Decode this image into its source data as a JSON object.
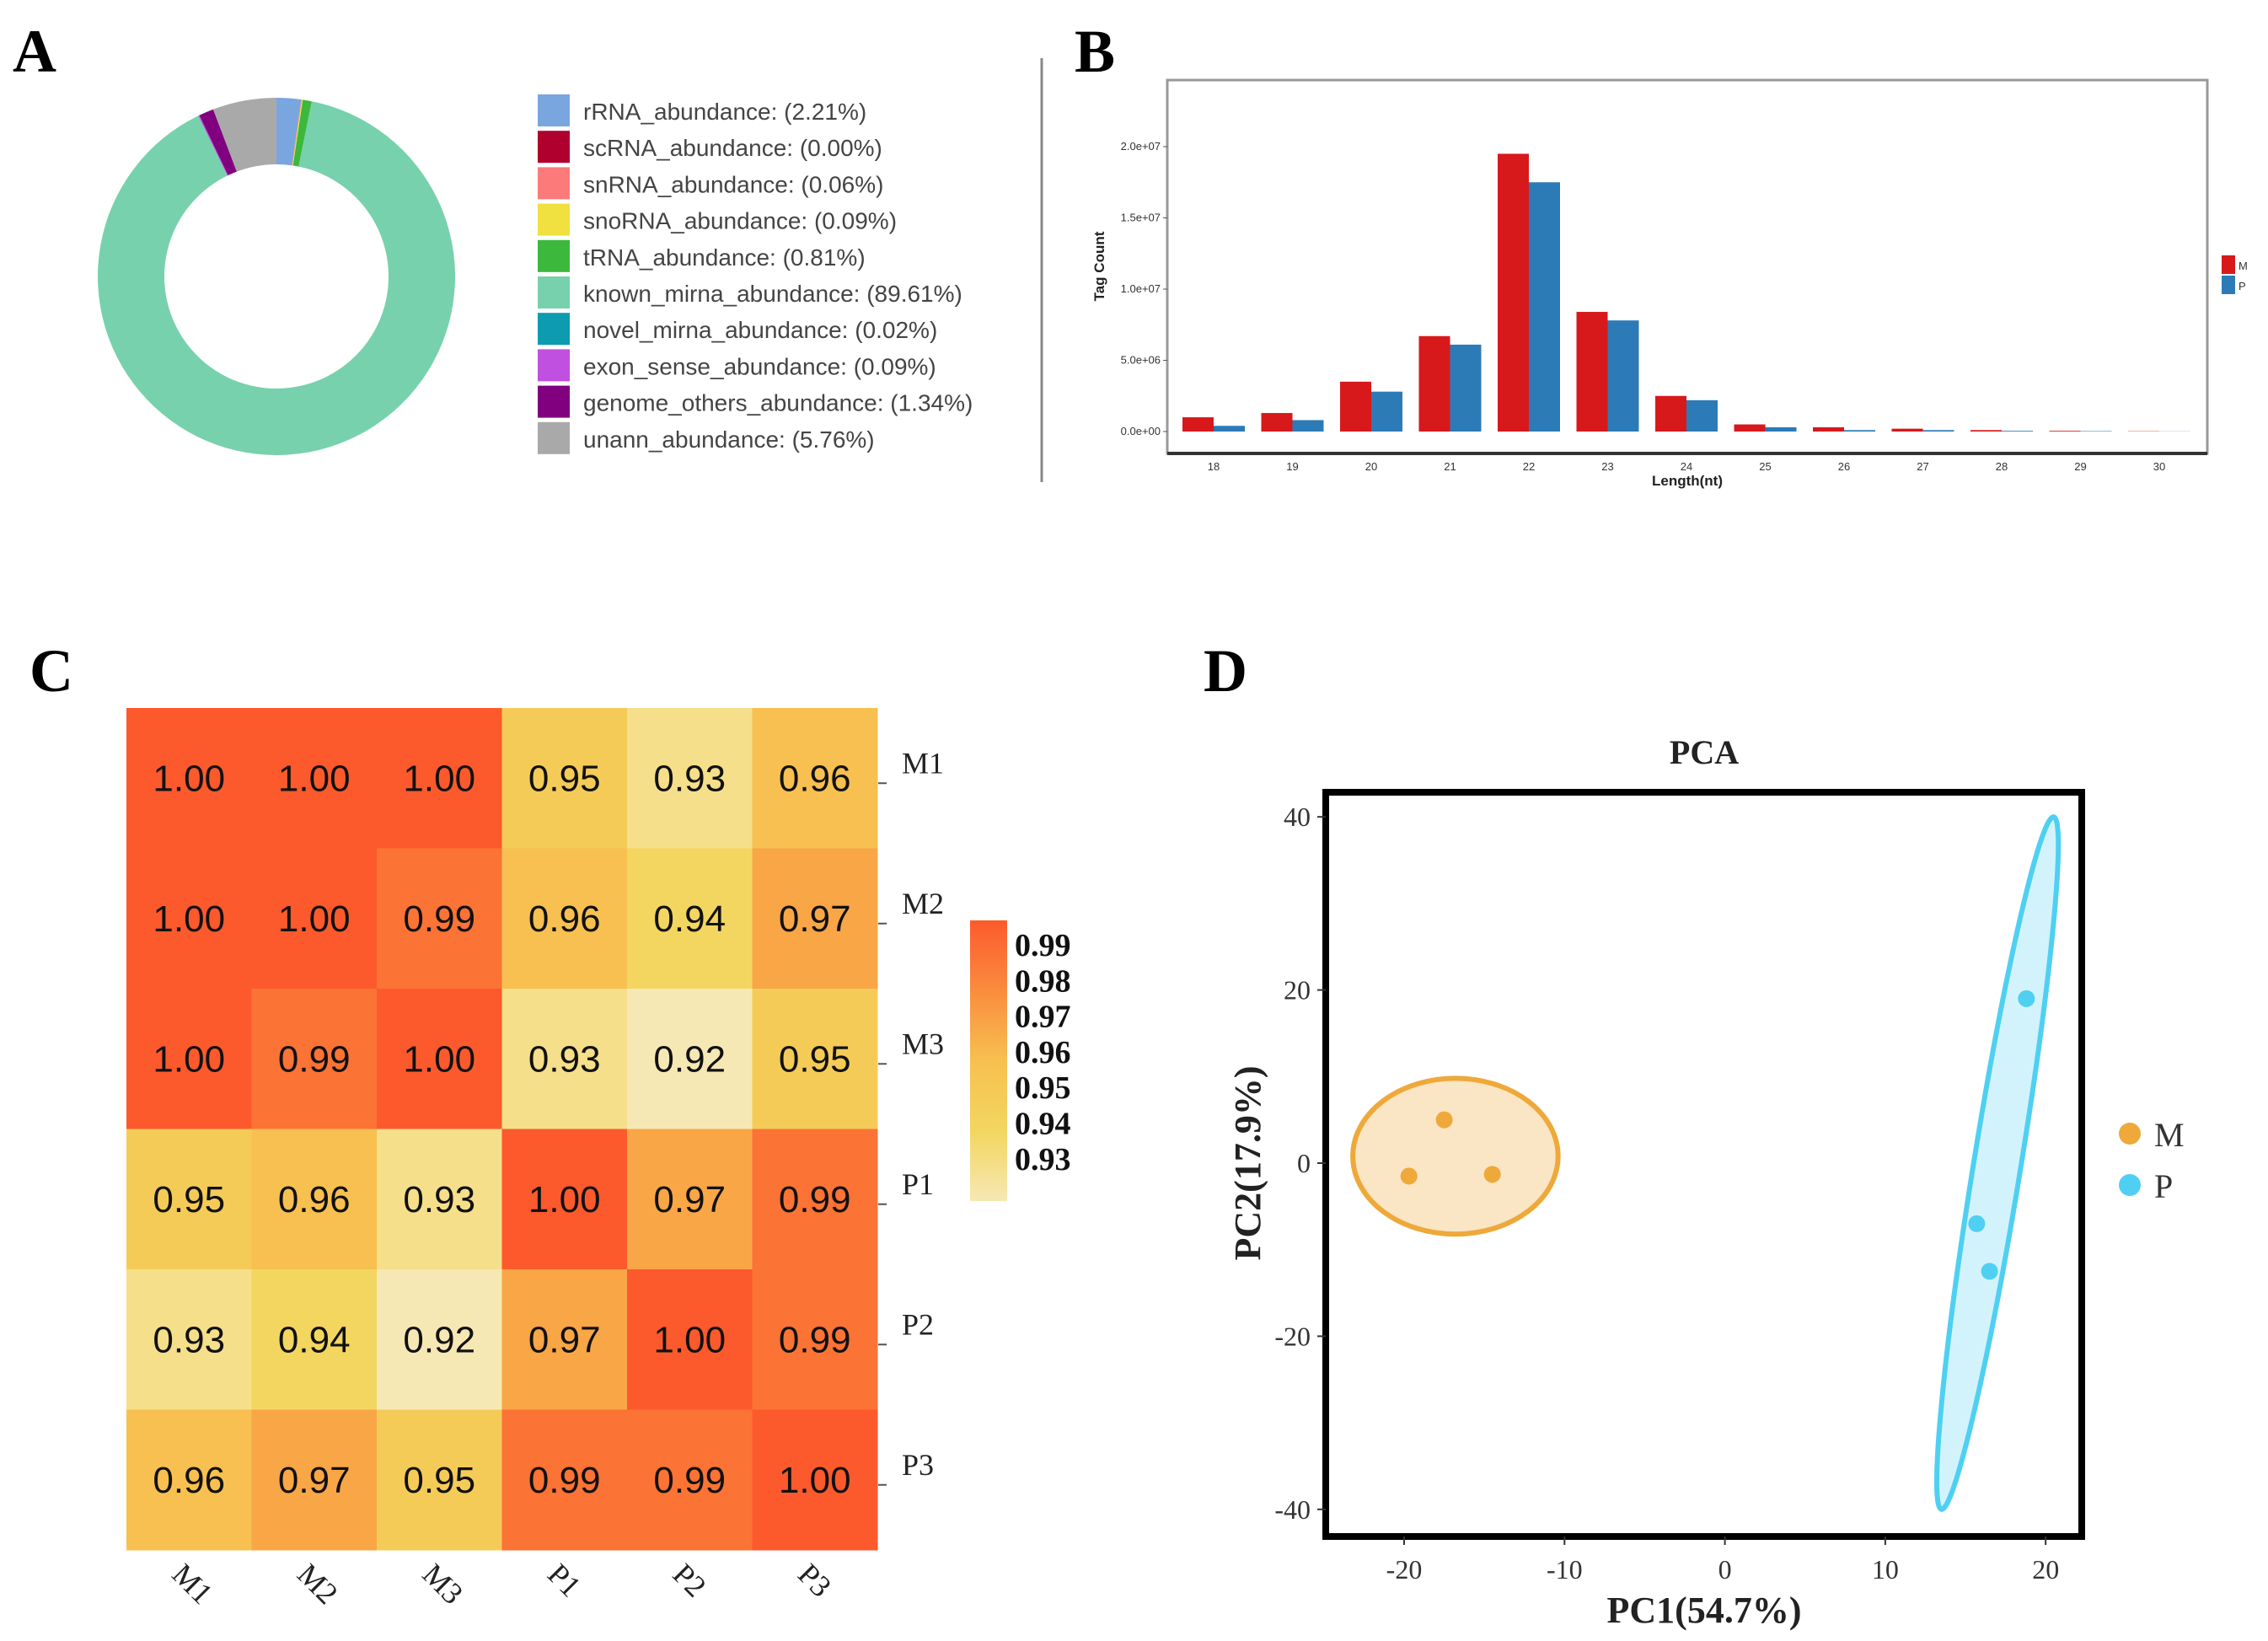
{
  "panels": {
    "a": "A",
    "b": "B",
    "c": "C",
    "d": "D"
  },
  "chart_data": [
    {
      "type": "pie",
      "variant": "donut",
      "slices": [
        {
          "label": "rRNA_abundance: (2.21%)",
          "value": 2.21,
          "color": "#7aa6e0"
        },
        {
          "label": "scRNA_abundance: (0.00%)",
          "value": 0.0,
          "color": "#b0002e"
        },
        {
          "label": "snRNA_abundance: (0.06%)",
          "value": 0.06,
          "color": "#fb7a7a"
        },
        {
          "label": "snoRNA_abundance: (0.09%)",
          "value": 0.09,
          "color": "#f0e040"
        },
        {
          "label": "tRNA_abundance: (0.81%)",
          "value": 0.81,
          "color": "#3cb83c"
        },
        {
          "label": "known_mirna_abundance: (89.61%)",
          "value": 89.61,
          "color": "#77d1ad"
        },
        {
          "label": "novel_mirna_abundance: (0.02%)",
          "value": 0.02,
          "color": "#0d9bb0"
        },
        {
          "label": "exon_sense_abundance: (0.09%)",
          "value": 0.09,
          "color": "#c050e0"
        },
        {
          "label": "genome_others_abundance: (1.34%)",
          "value": 1.34,
          "color": "#800080"
        },
        {
          "label": "unann_abundance: (5.76%)",
          "value": 5.76,
          "color": "#a9a9a9"
        }
      ],
      "legend_position": "right"
    },
    {
      "type": "bar",
      "xlabel": "Length(nt)",
      "ylabel": "Tag Count",
      "categories": [
        "18",
        "19",
        "20",
        "21",
        "22",
        "23",
        "24",
        "25",
        "26",
        "27",
        "28",
        "29",
        "30"
      ],
      "yticks": [
        "0.0e+00",
        "5.0e+06",
        "1.0e+07",
        "1.5e+07",
        "2.0e+07"
      ],
      "ylim": [
        0,
        24000000
      ],
      "series": [
        {
          "name": "M",
          "color": "#d7191c",
          "values": [
            1000000,
            1300000,
            3500000,
            6700000,
            19500000,
            8400000,
            2500000,
            500000,
            300000,
            200000,
            100000,
            50000,
            20000
          ]
        },
        {
          "name": "P",
          "color": "#2c7bb6",
          "values": [
            400000,
            800000,
            2800000,
            6100000,
            17500000,
            7800000,
            2200000,
            300000,
            100000,
            100000,
            50000,
            30000,
            10000
          ]
        }
      ],
      "legend_position": "right"
    },
    {
      "type": "heatmap",
      "rows": [
        "M1",
        "M2",
        "M3",
        "P1",
        "P2",
        "P3"
      ],
      "columns": [
        "M1",
        "M2",
        "M3",
        "P1",
        "P2",
        "P3"
      ],
      "values": [
        [
          1.0,
          1.0,
          1.0,
          0.95,
          0.93,
          0.96
        ],
        [
          1.0,
          1.0,
          0.99,
          0.96,
          0.94,
          0.97
        ],
        [
          1.0,
          0.99,
          1.0,
          0.93,
          0.92,
          0.95
        ],
        [
          0.95,
          0.96,
          0.93,
          1.0,
          0.97,
          0.99
        ],
        [
          0.93,
          0.94,
          0.92,
          0.97,
          1.0,
          0.99
        ],
        [
          0.96,
          0.97,
          0.95,
          0.99,
          0.99,
          1.0
        ]
      ],
      "labels": [
        [
          "1.00",
          "1.00",
          "1.00",
          "0.95",
          "0.93",
          "0.96"
        ],
        [
          "1.00",
          "1.00",
          "0.99",
          "0.96",
          "0.94",
          "0.97"
        ],
        [
          "1.00",
          "0.99",
          "1.00",
          "0.93",
          "0.92",
          "0.95"
        ],
        [
          "0.95",
          "0.96",
          "0.93",
          "1.00",
          "0.97",
          "0.99"
        ],
        [
          "0.93",
          "0.94",
          "0.92",
          "0.97",
          "1.00",
          "0.99"
        ],
        [
          "0.96",
          "0.97",
          "0.95",
          "0.99",
          "0.99",
          "1.00"
        ]
      ],
      "colorbar_ticks": [
        "0.99",
        "0.98",
        "0.97",
        "0.96",
        "0.95",
        "0.94",
        "0.93"
      ],
      "color_low": "#f6e8b4",
      "color_high": "#fc5a2c"
    },
    {
      "type": "scatter",
      "title": "PCA",
      "xlabel": "PC1(54.7%)",
      "ylabel": "PC2(17.9%)",
      "xlim": [
        -25,
        22
      ],
      "ylim": [
        -43,
        43
      ],
      "xticks": [
        "-20",
        "-10",
        "0",
        "10",
        "20"
      ],
      "yticks": [
        "40",
        "20",
        "0",
        "-20",
        "-40"
      ],
      "series": [
        {
          "name": "M",
          "color": "#eea93a",
          "points": [
            [
              -17.5,
              5
            ],
            [
              -19.7,
              -1.5
            ],
            [
              -14.5,
              -1.3
            ]
          ]
        },
        {
          "name": "P",
          "color": "#4fd0f2",
          "points": [
            [
              18.8,
              19
            ],
            [
              15.7,
              -7
            ],
            [
              16.5,
              -12.5
            ]
          ]
        }
      ],
      "legend_position": "right"
    }
  ]
}
